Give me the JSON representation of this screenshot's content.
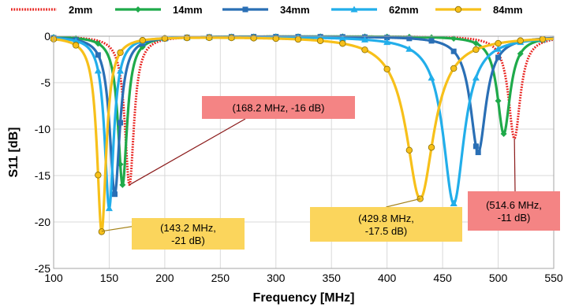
{
  "chart_data": {
    "type": "line",
    "title": "",
    "xlabel": "Frequency [MHz]",
    "ylabel": "S11 [dB]",
    "xlim": [
      100,
      550
    ],
    "ylim": [
      -25,
      0
    ],
    "xticks": [
      "100",
      "150",
      "200",
      "250",
      "300",
      "350",
      "400",
      "450",
      "500",
      "550"
    ],
    "yticks": [
      "0",
      "-5",
      "-10",
      "-15",
      "-20",
      "-25"
    ],
    "grid": true,
    "legend_position": "top",
    "series": [
      {
        "name": "2mm",
        "color": "#e8201c",
        "line_style": "dotted",
        "marker": "none",
        "resonances": [
          {
            "f0": 168.2,
            "depth": -16,
            "width": 10
          },
          {
            "f0": 514.6,
            "depth": -11,
            "width": 13
          }
        ]
      },
      {
        "name": "14mm",
        "color": "#1faa4a",
        "line_style": "solid",
        "marker": "diamond",
        "resonances": [
          {
            "f0": 162,
            "depth": -16,
            "width": 10
          },
          {
            "f0": 505,
            "depth": -10.5,
            "width": 14
          }
        ]
      },
      {
        "name": "34mm",
        "color": "#2a6fb5",
        "line_style": "solid",
        "marker": "square",
        "resonances": [
          {
            "f0": 155,
            "depth": -17,
            "width": 11
          },
          {
            "f0": 482,
            "depth": -12.5,
            "width": 17
          }
        ]
      },
      {
        "name": "62mm",
        "color": "#22aeea",
        "line_style": "solid",
        "marker": "triangle",
        "resonances": [
          {
            "f0": 150,
            "depth": -18.5,
            "width": 10
          },
          {
            "f0": 460,
            "depth": -18,
            "width": 23
          }
        ]
      },
      {
        "name": "84mm",
        "color": "#f7c01a",
        "line_style": "solid",
        "marker": "circle",
        "resonances": [
          {
            "f0": 143.2,
            "depth": -21,
            "width": 10
          },
          {
            "f0": 429.8,
            "depth": -17.5,
            "width": 30
          }
        ]
      }
    ],
    "annotations": [
      {
        "lines": [
          "(168.2 MHz, -16 dB)"
        ],
        "point": [
          168.2,
          -16
        ],
        "fill": "#f48484",
        "line_color": "#8b1a1a"
      },
      {
        "lines": [
          "(143.2 MHz,",
          "-21 dB)"
        ],
        "point": [
          143.2,
          -21
        ],
        "fill": "#fbd55c",
        "line_color": "#a5831a"
      },
      {
        "lines": [
          "(429.8 MHz,",
          "-17.5 dB)"
        ],
        "point": [
          429.8,
          -17.5
        ],
        "fill": "#fbd55c",
        "line_color": "#a5831a"
      },
      {
        "lines": [
          "(514.6 MHz,",
          "-11 dB)"
        ],
        "point": [
          514.6,
          -11
        ],
        "fill": "#f48484",
        "line_color": "#8b1a1a"
      }
    ]
  }
}
